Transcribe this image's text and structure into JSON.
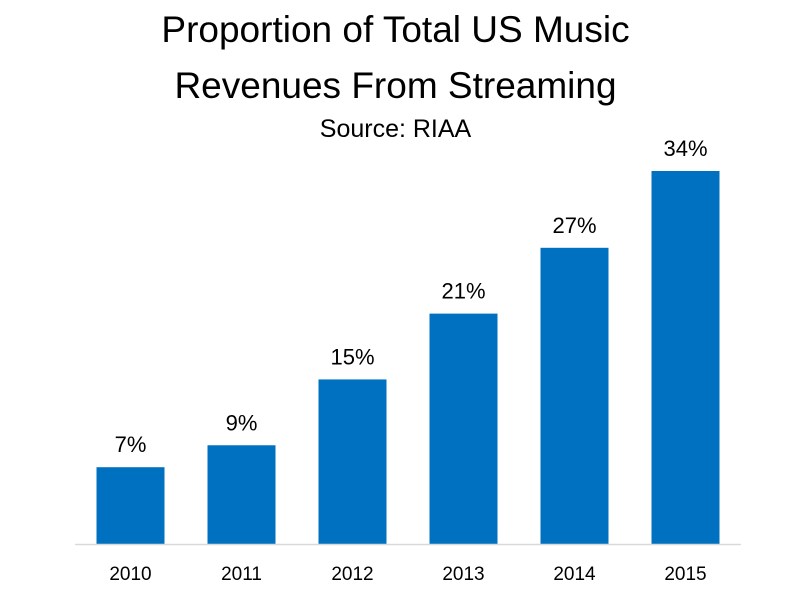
{
  "chart_data": {
    "type": "bar",
    "title_lines": [
      "Proportion of Total US Music",
      "Revenues From Streaming"
    ],
    "subtitle": "Source: RIAA",
    "categories": [
      "2010",
      "2011",
      "2012",
      "2013",
      "2014",
      "2015"
    ],
    "values": [
      7,
      9,
      15,
      21,
      27,
      34
    ],
    "data_labels": [
      "7%",
      "9%",
      "15%",
      "21%",
      "27%",
      "34%"
    ],
    "value_unit": "%",
    "bar_color": "#0070C0",
    "axis_color": "#D9D9D9",
    "ylim": [
      0,
      34
    ],
    "grid": false,
    "legend": "none",
    "xlabel": "",
    "ylabel": ""
  }
}
